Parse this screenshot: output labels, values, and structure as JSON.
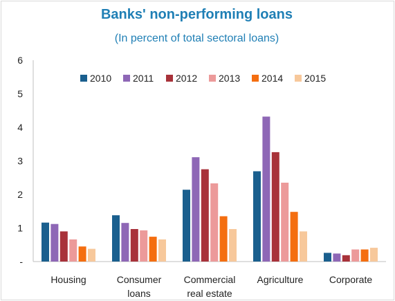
{
  "chart_data": {
    "type": "bar",
    "title": "Banks' non-performing loans",
    "subtitle": "(In percent of total sectoral loans)",
    "categories": [
      [
        "Housing"
      ],
      [
        "Consumer",
        "loans"
      ],
      [
        "Commercial",
        "real estate"
      ],
      [
        "Agriculture"
      ],
      [
        "Corporate"
      ]
    ],
    "series": [
      {
        "name": "2010",
        "color": "#1a5f8e",
        "values": [
          1.16,
          1.38,
          2.14,
          2.69,
          0.26
        ]
      },
      {
        "name": "2011",
        "color": "#8e67b6",
        "values": [
          1.12,
          1.15,
          3.11,
          4.32,
          0.24
        ]
      },
      {
        "name": "2012",
        "color": "#a8323a",
        "values": [
          0.9,
          0.97,
          2.75,
          3.26,
          0.19
        ]
      },
      {
        "name": "2013",
        "color": "#ec9a9a",
        "values": [
          0.66,
          0.93,
          2.33,
          2.35,
          0.36
        ]
      },
      {
        "name": "2014",
        "color": "#f46e10",
        "values": [
          0.45,
          0.74,
          1.35,
          1.48,
          0.36
        ]
      },
      {
        "name": "2015",
        "color": "#f7c89b",
        "values": [
          0.38,
          0.66,
          0.97,
          0.9,
          0.41
        ]
      }
    ],
    "ylim": [
      0,
      6
    ],
    "yticks": [
      "-",
      "1",
      "2",
      "3",
      "4",
      "5",
      "6"
    ],
    "legend": "top",
    "grid": false
  }
}
